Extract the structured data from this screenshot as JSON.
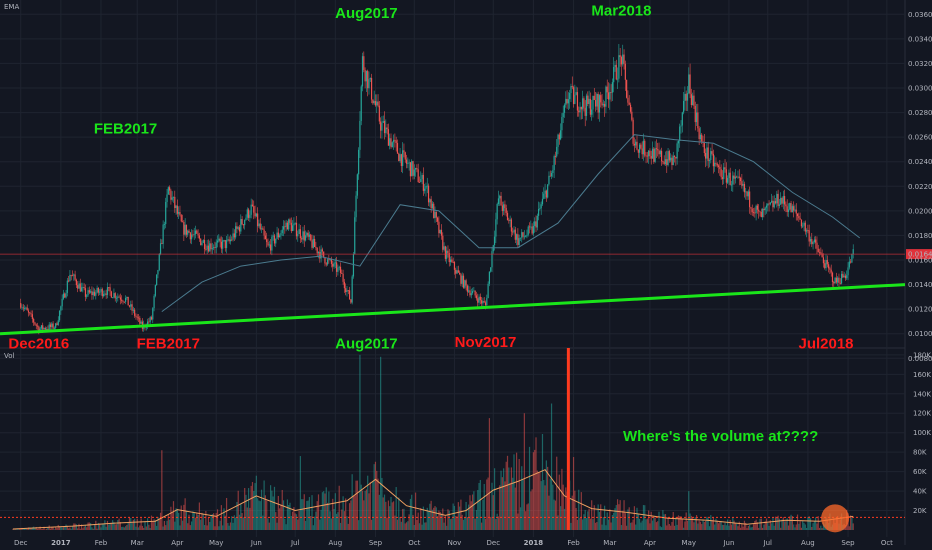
{
  "colors": {
    "background": "#131722",
    "grid": "#1f2430",
    "up_candle": "#26a69a",
    "down_candle": "#ef5350",
    "ema": "#4b7b8f",
    "trendline": "#1ae51a",
    "annotation_green": "#1ae51a",
    "annotation_red": "#ff1a1a",
    "price_line": "#e0323a",
    "volume_ma": "#f0a060",
    "marker_line": "#ff3b1f",
    "volume_circle": "#ff6a2a"
  },
  "labels": {
    "price_indicator": "EMA",
    "volume_pane": "Vol",
    "current_price": "0.016480",
    "volume_question": "Where's the volume at????"
  },
  "annotations": [
    {
      "text": "FEB2017",
      "color": "green",
      "date": "2017-02-20",
      "price": 0.0263
    },
    {
      "text": "Aug2017",
      "color": "green",
      "date": "2017-08-25",
      "price": 0.0357
    },
    {
      "text": "Mar2018",
      "color": "green",
      "date": "2018-03-10",
      "price": 0.0359
    },
    {
      "text": "Dec2016",
      "color": "red",
      "date": "2016-12-15",
      "price": 0.0088
    },
    {
      "text": "FEB2017",
      "color": "red",
      "date": "2017-03-25",
      "price": 0.0088
    },
    {
      "text": "Aug2017",
      "color": "green",
      "date": "2017-08-25",
      "price": 0.0088
    },
    {
      "text": "Nov2017",
      "color": "red",
      "date": "2017-11-25",
      "price": 0.0089
    },
    {
      "text": "Jul2018",
      "color": "red",
      "date": "2018-08-15",
      "price": 0.0088
    }
  ],
  "chart_data": [
    {
      "type": "candlestick",
      "title": "",
      "x_range": [
        "2016-11-15",
        "2018-10-15"
      ],
      "ylim": [
        0.009,
        0.037
      ],
      "grid": true,
      "current_price": 0.01648,
      "y_ticks": [
        "0.036000",
        "0.034000",
        "0.032000",
        "0.030000",
        "0.028000",
        "0.026000",
        "0.024000",
        "0.022000",
        "0.020000",
        "0.018000",
        "0.016000",
        "0.014000",
        "0.012000",
        "0.010000",
        "0.008000"
      ],
      "x_ticks": [
        "Dec",
        "2017",
        "Feb",
        "Mar",
        "Apr",
        "May",
        "Jun",
        "Jul",
        "Aug",
        "Sep",
        "Oct",
        "Nov",
        "Dec",
        "2018",
        "Feb",
        "Mar",
        "Apr",
        "May",
        "Jun",
        "Jul",
        "Aug",
        "Sep",
        "Oct"
      ],
      "price_path": [
        [
          "2016-12-01",
          0.0125
        ],
        [
          "2016-12-15",
          0.0104
        ],
        [
          "2016-12-28",
          0.0106
        ],
        [
          "2017-01-08",
          0.0149
        ],
        [
          "2017-01-20",
          0.0132
        ],
        [
          "2017-02-05",
          0.0135
        ],
        [
          "2017-02-20",
          0.0128
        ],
        [
          "2017-03-05",
          0.0105
        ],
        [
          "2017-03-12",
          0.0112
        ],
        [
          "2017-03-25",
          0.0218
        ],
        [
          "2017-04-05",
          0.0186
        ],
        [
          "2017-04-25",
          0.0172
        ],
        [
          "2017-05-10",
          0.0173
        ],
        [
          "2017-05-28",
          0.0202
        ],
        [
          "2017-06-10",
          0.017
        ],
        [
          "2017-06-25",
          0.019
        ],
        [
          "2017-07-10",
          0.0178
        ],
        [
          "2017-07-25",
          0.016
        ],
        [
          "2017-08-05",
          0.015
        ],
        [
          "2017-08-13",
          0.0126
        ],
        [
          "2017-08-22",
          0.0322
        ],
        [
          "2017-09-05",
          0.0271
        ],
        [
          "2017-09-20",
          0.0245
        ],
        [
          "2017-10-10",
          0.022
        ],
        [
          "2017-10-25",
          0.0165
        ],
        [
          "2017-11-10",
          0.0138
        ],
        [
          "2017-11-25",
          0.0123
        ],
        [
          "2017-12-05",
          0.021
        ],
        [
          "2017-12-20",
          0.0176
        ],
        [
          "2018-01-01",
          0.0185
        ],
        [
          "2018-01-15",
          0.023
        ],
        [
          "2018-01-28",
          0.0295
        ],
        [
          "2018-02-10",
          0.0285
        ],
        [
          "2018-02-25",
          0.029
        ],
        [
          "2018-03-10",
          0.0325
        ],
        [
          "2018-03-20",
          0.0255
        ],
        [
          "2018-04-05",
          0.0245
        ],
        [
          "2018-04-20",
          0.024
        ],
        [
          "2018-05-01",
          0.0305
        ],
        [
          "2018-05-12",
          0.025
        ],
        [
          "2018-05-25",
          0.0232
        ],
        [
          "2018-06-10",
          0.022
        ],
        [
          "2018-06-25",
          0.0195
        ],
        [
          "2018-07-10",
          0.021
        ],
        [
          "2018-07-25",
          0.0195
        ],
        [
          "2018-08-10",
          0.0165
        ],
        [
          "2018-08-22",
          0.0142
        ],
        [
          "2018-08-30",
          0.0148
        ],
        [
          "2018-09-05",
          0.0165
        ]
      ],
      "ema_path": [
        [
          "2017-03-20",
          0.0118
        ],
        [
          "2017-04-20",
          0.0142
        ],
        [
          "2017-05-20",
          0.0155
        ],
        [
          "2017-06-20",
          0.016
        ],
        [
          "2017-07-20",
          0.0163
        ],
        [
          "2017-08-20",
          0.0155
        ],
        [
          "2017-09-20",
          0.0205
        ],
        [
          "2017-10-20",
          0.02
        ],
        [
          "2017-11-20",
          0.017
        ],
        [
          "2017-12-20",
          0.017
        ],
        [
          "2018-01-20",
          0.019
        ],
        [
          "2018-02-20",
          0.023
        ],
        [
          "2018-03-20",
          0.0262
        ],
        [
          "2018-04-20",
          0.0258
        ],
        [
          "2018-05-20",
          0.0255
        ],
        [
          "2018-06-20",
          0.024
        ],
        [
          "2018-07-20",
          0.0215
        ],
        [
          "2018-08-20",
          0.0195
        ],
        [
          "2018-09-10",
          0.0178
        ]
      ],
      "trendline": [
        [
          "2016-11-15",
          0.01
        ],
        [
          "2018-10-15",
          0.014
        ]
      ]
    },
    {
      "type": "bar",
      "title": "",
      "ylabel": "Vol",
      "ylim": [
        0,
        185000
      ],
      "y_ticks": [
        "180K",
        "160K",
        "140K",
        "120K",
        "100K",
        "80K",
        "60K",
        "40K",
        "20K"
      ],
      "average_volume": 13000,
      "volume_ma_path": [
        [
          "2016-11-25",
          1000
        ],
        [
          "2017-01-10",
          4000
        ],
        [
          "2017-02-10",
          7000
        ],
        [
          "2017-03-15",
          9000
        ],
        [
          "2017-04-01",
          21000
        ],
        [
          "2017-05-01",
          14000
        ],
        [
          "2017-06-01",
          35000
        ],
        [
          "2017-07-01",
          20000
        ],
        [
          "2017-08-10",
          30000
        ],
        [
          "2017-09-01",
          52000
        ],
        [
          "2017-09-25",
          25000
        ],
        [
          "2017-10-25",
          15000
        ],
        [
          "2017-11-10",
          20000
        ],
        [
          "2017-12-01",
          41000
        ],
        [
          "2017-12-20",
          50000
        ],
        [
          "2018-01-10",
          62000
        ],
        [
          "2018-01-25",
          35000
        ],
        [
          "2018-02-15",
          22000
        ],
        [
          "2018-03-15",
          18000
        ],
        [
          "2018-04-15",
          12000
        ],
        [
          "2018-05-15",
          10000
        ],
        [
          "2018-06-15",
          6000
        ],
        [
          "2018-07-15",
          10000
        ],
        [
          "2018-08-10",
          9000
        ],
        [
          "2018-09-05",
          14000
        ]
      ],
      "volume_spikes": [
        [
          "2017-03-20",
          82000
        ],
        [
          "2017-07-05",
          76000
        ],
        [
          "2017-08-20",
          180000
        ],
        [
          "2017-09-05",
          178000
        ],
        [
          "2017-11-28",
          115000
        ],
        [
          "2017-12-25",
          120000
        ],
        [
          "2018-01-15",
          130000
        ],
        [
          "2018-02-01",
          75000
        ],
        [
          "2018-05-01",
          40000
        ]
      ],
      "marker_date": "2018-01-28"
    }
  ]
}
